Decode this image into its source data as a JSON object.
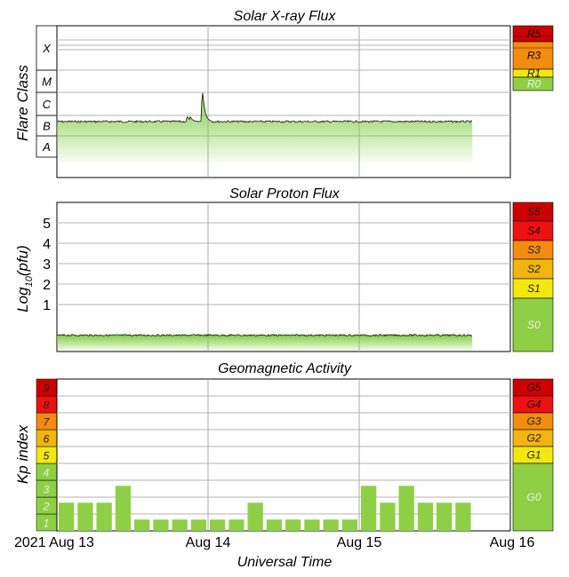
{
  "chart_data": [
    {
      "type": "area",
      "title": "Solar X-ray Flux",
      "ylabel": "Flare Class",
      "y_scale": "log",
      "flare_classes": [
        "A",
        "B",
        "C",
        "M",
        "X"
      ],
      "x_range": [
        "2021-08-13 00:00",
        "2021-08-16 00:00"
      ],
      "data_end": "2021-08-15 18:00",
      "baseline_class": "B5",
      "peaks": [
        {
          "time": "2021-08-13 20:40",
          "class": "C1"
        },
        {
          "time": "2021-08-13 21:10",
          "class": "B9"
        },
        {
          "time": "2021-08-13 23:10",
          "class": "M1"
        }
      ],
      "scale": [
        {
          "label": "R5",
          "color": "#cc0000"
        },
        {
          "label": "R3",
          "color": "#f28c0f"
        },
        {
          "label": "R1",
          "color": "#f2e80f"
        },
        {
          "label": "R0",
          "color": "#8fcf45"
        }
      ],
      "grid": true,
      "color": "#7fcc3f"
    },
    {
      "type": "area",
      "title": "Solar Proton Flux",
      "ylabel_base": "Log",
      "ylabel_sub": "10",
      "ylabel_tail": "(pfu)",
      "ytick_labels": [
        "1",
        "2",
        "3",
        "4",
        "5"
      ],
      "ylim": [
        -1.3,
        6.0
      ],
      "x_range": [
        "2021-08-13 00:00",
        "2021-08-16 00:00"
      ],
      "data_end": "2021-08-15 18:00",
      "baseline": -0.5,
      "scale": [
        {
          "label": "S5",
          "color": "#cc0000"
        },
        {
          "label": "S4",
          "color": "#ee1111"
        },
        {
          "label": "S3",
          "color": "#f28c0f"
        },
        {
          "label": "S2",
          "color": "#f2b40f"
        },
        {
          "label": "S1",
          "color": "#f2e80f"
        },
        {
          "label": "S0",
          "color": "#8fcf45"
        }
      ],
      "grid": true,
      "color": "#7fcc3f"
    },
    {
      "type": "bar",
      "title": "Geomagnetic Activity",
      "ylabel": "Kp index",
      "xlabel": "Universal Time",
      "ylim": [
        0,
        9
      ],
      "x_range": [
        "2021-08-13 00:00",
        "2021-08-16 00:00"
      ],
      "bar_interval_hours": 3,
      "x": [
        "2021-08-13 00:00",
        "2021-08-13 03:00",
        "2021-08-13 06:00",
        "2021-08-13 09:00",
        "2021-08-13 12:00",
        "2021-08-13 15:00",
        "2021-08-13 18:00",
        "2021-08-13 21:00",
        "2021-08-14 00:00",
        "2021-08-14 03:00",
        "2021-08-14 06:00",
        "2021-08-14 09:00",
        "2021-08-14 12:00",
        "2021-08-14 15:00",
        "2021-08-14 18:00",
        "2021-08-14 21:00",
        "2021-08-15 00:00",
        "2021-08-15 03:00",
        "2021-08-15 06:00",
        "2021-08-15 09:00",
        "2021-08-15 12:00",
        "2021-08-15 15:00"
      ],
      "values": [
        1.67,
        1.67,
        1.67,
        2.67,
        0.67,
        0.67,
        0.67,
        0.67,
        0.67,
        0.67,
        1.67,
        0.67,
        0.67,
        0.67,
        0.67,
        0.67,
        2.67,
        1.67,
        2.67,
        1.67,
        1.67,
        1.67
      ],
      "kp_labels": [
        "1",
        "2",
        "3",
        "4",
        "5",
        "6",
        "7",
        "8",
        "9"
      ],
      "kp_colors": [
        "#8fcf45",
        "#8fcf45",
        "#8fcf45",
        "#8fcf45",
        "#f2e80f",
        "#f2b40f",
        "#f28c0f",
        "#ee1111",
        "#cc0000"
      ],
      "scale": [
        {
          "label": "G5",
          "color": "#cc0000"
        },
        {
          "label": "G4",
          "color": "#ee1111"
        },
        {
          "label": "G3",
          "color": "#f28c0f"
        },
        {
          "label": "G2",
          "color": "#f2b40f"
        },
        {
          "label": "G1",
          "color": "#f2e80f"
        },
        {
          "label": "G0",
          "color": "#8fcf45"
        }
      ],
      "xtick_labels": [
        "2021 Aug 13",
        "Aug 14",
        "Aug 15",
        "Aug 16"
      ],
      "grid": true,
      "color": "#8fcf45"
    }
  ]
}
